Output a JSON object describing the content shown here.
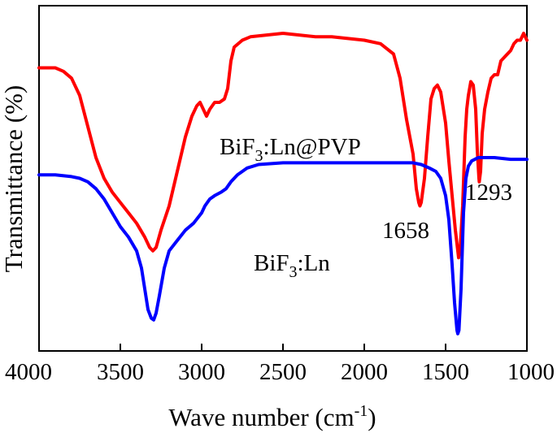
{
  "chart_data": {
    "type": "line",
    "title": "",
    "xlabel": "Wave number (cm",
    "xlabel_sup": "-1",
    "xlabel_end": ")",
    "ylabel": "Transmittance (%)",
    "xlim": [
      4000,
      1000
    ],
    "ylim": [
      0,
      100
    ],
    "x_reversed": true,
    "x_ticks": [
      "4000",
      "3500",
      "3000",
      "2500",
      "2000",
      "1500",
      "1000"
    ],
    "y_ticks_shown": false,
    "grid": false,
    "series": [
      {
        "name": "BiF3:Ln@PVP",
        "label_main": "BiF",
        "label_sub": "3",
        "label_end": ":Ln@PVP",
        "color": "#ff0000",
        "points": [
          [
            4000,
            82
          ],
          [
            3900,
            82
          ],
          [
            3850,
            81
          ],
          [
            3800,
            79
          ],
          [
            3750,
            74
          ],
          [
            3700,
            65
          ],
          [
            3650,
            56
          ],
          [
            3600,
            50
          ],
          [
            3550,
            46
          ],
          [
            3500,
            43
          ],
          [
            3450,
            40
          ],
          [
            3400,
            37
          ],
          [
            3350,
            33
          ],
          [
            3320,
            30
          ],
          [
            3300,
            29
          ],
          [
            3280,
            30
          ],
          [
            3250,
            35
          ],
          [
            3200,
            42
          ],
          [
            3150,
            52
          ],
          [
            3100,
            62
          ],
          [
            3060,
            68
          ],
          [
            3030,
            71
          ],
          [
            3010,
            72
          ],
          [
            2990,
            70
          ],
          [
            2970,
            68
          ],
          [
            2950,
            70
          ],
          [
            2920,
            72
          ],
          [
            2890,
            72
          ],
          [
            2860,
            73
          ],
          [
            2840,
            76
          ],
          [
            2820,
            84
          ],
          [
            2800,
            88
          ],
          [
            2750,
            90
          ],
          [
            2700,
            91
          ],
          [
            2600,
            91.5
          ],
          [
            2500,
            92
          ],
          [
            2400,
            91.5
          ],
          [
            2300,
            91
          ],
          [
            2200,
            91
          ],
          [
            2100,
            90.5
          ],
          [
            2000,
            90
          ],
          [
            1900,
            89
          ],
          [
            1820,
            86
          ],
          [
            1780,
            79
          ],
          [
            1740,
            67
          ],
          [
            1720,
            62
          ],
          [
            1700,
            57
          ],
          [
            1680,
            47
          ],
          [
            1665,
            43
          ],
          [
            1658,
            42
          ],
          [
            1650,
            43
          ],
          [
            1630,
            50
          ],
          [
            1610,
            62
          ],
          [
            1590,
            73
          ],
          [
            1570,
            76
          ],
          [
            1550,
            77
          ],
          [
            1530,
            75
          ],
          [
            1500,
            66
          ],
          [
            1480,
            55
          ],
          [
            1460,
            45
          ],
          [
            1440,
            35
          ],
          [
            1425,
            29
          ],
          [
            1420,
            27
          ],
          [
            1410,
            30
          ],
          [
            1395,
            42
          ],
          [
            1380,
            62
          ],
          [
            1370,
            70
          ],
          [
            1360,
            74
          ],
          [
            1345,
            78
          ],
          [
            1330,
            77
          ],
          [
            1315,
            70
          ],
          [
            1305,
            58
          ],
          [
            1295,
            50
          ],
          [
            1293,
            49
          ],
          [
            1285,
            52
          ],
          [
            1275,
            63
          ],
          [
            1260,
            70
          ],
          [
            1240,
            75
          ],
          [
            1220,
            79
          ],
          [
            1200,
            80
          ],
          [
            1180,
            80
          ],
          [
            1160,
            84
          ],
          [
            1140,
            85
          ],
          [
            1120,
            86
          ],
          [
            1100,
            87
          ],
          [
            1080,
            89
          ],
          [
            1060,
            90
          ],
          [
            1040,
            90
          ],
          [
            1020,
            92
          ],
          [
            1000,
            90
          ]
        ]
      },
      {
        "name": "BiF3:Ln",
        "label_main": "BiF",
        "label_sub": "3",
        "label_end": ":Ln",
        "color": "#0000ff",
        "points": [
          [
            4000,
            51
          ],
          [
            3900,
            51
          ],
          [
            3800,
            50.5
          ],
          [
            3750,
            50
          ],
          [
            3700,
            49
          ],
          [
            3650,
            47
          ],
          [
            3600,
            44
          ],
          [
            3550,
            40
          ],
          [
            3500,
            36
          ],
          [
            3450,
            33
          ],
          [
            3400,
            29
          ],
          [
            3370,
            24
          ],
          [
            3350,
            18
          ],
          [
            3330,
            12
          ],
          [
            3310,
            9.5
          ],
          [
            3295,
            9
          ],
          [
            3280,
            11
          ],
          [
            3260,
            16
          ],
          [
            3230,
            24
          ],
          [
            3200,
            29
          ],
          [
            3150,
            32
          ],
          [
            3100,
            35
          ],
          [
            3050,
            37
          ],
          [
            3000,
            40
          ],
          [
            2980,
            42
          ],
          [
            2950,
            44
          ],
          [
            2920,
            45
          ],
          [
            2880,
            46
          ],
          [
            2850,
            47
          ],
          [
            2820,
            49
          ],
          [
            2780,
            51
          ],
          [
            2720,
            53
          ],
          [
            2650,
            54
          ],
          [
            2500,
            54.5
          ],
          [
            2300,
            54.5
          ],
          [
            2100,
            54.5
          ],
          [
            2000,
            54.5
          ],
          [
            1900,
            54.5
          ],
          [
            1800,
            54.5
          ],
          [
            1700,
            54.5
          ],
          [
            1650,
            54
          ],
          [
            1600,
            53
          ],
          [
            1560,
            52
          ],
          [
            1530,
            50
          ],
          [
            1500,
            45
          ],
          [
            1480,
            38
          ],
          [
            1460,
            25
          ],
          [
            1445,
            14
          ],
          [
            1430,
            6
          ],
          [
            1425,
            5
          ],
          [
            1418,
            6
          ],
          [
            1405,
            18
          ],
          [
            1390,
            40
          ],
          [
            1375,
            50
          ],
          [
            1360,
            53.5
          ],
          [
            1340,
            55
          ],
          [
            1300,
            56
          ],
          [
            1250,
            56
          ],
          [
            1200,
            56
          ],
          [
            1100,
            55.5
          ],
          [
            1050,
            55.5
          ],
          [
            1000,
            55.5
          ]
        ]
      }
    ],
    "annotations": [
      {
        "text": "1658",
        "x": 1658
      },
      {
        "text": "1293",
        "x": 1293
      }
    ]
  }
}
